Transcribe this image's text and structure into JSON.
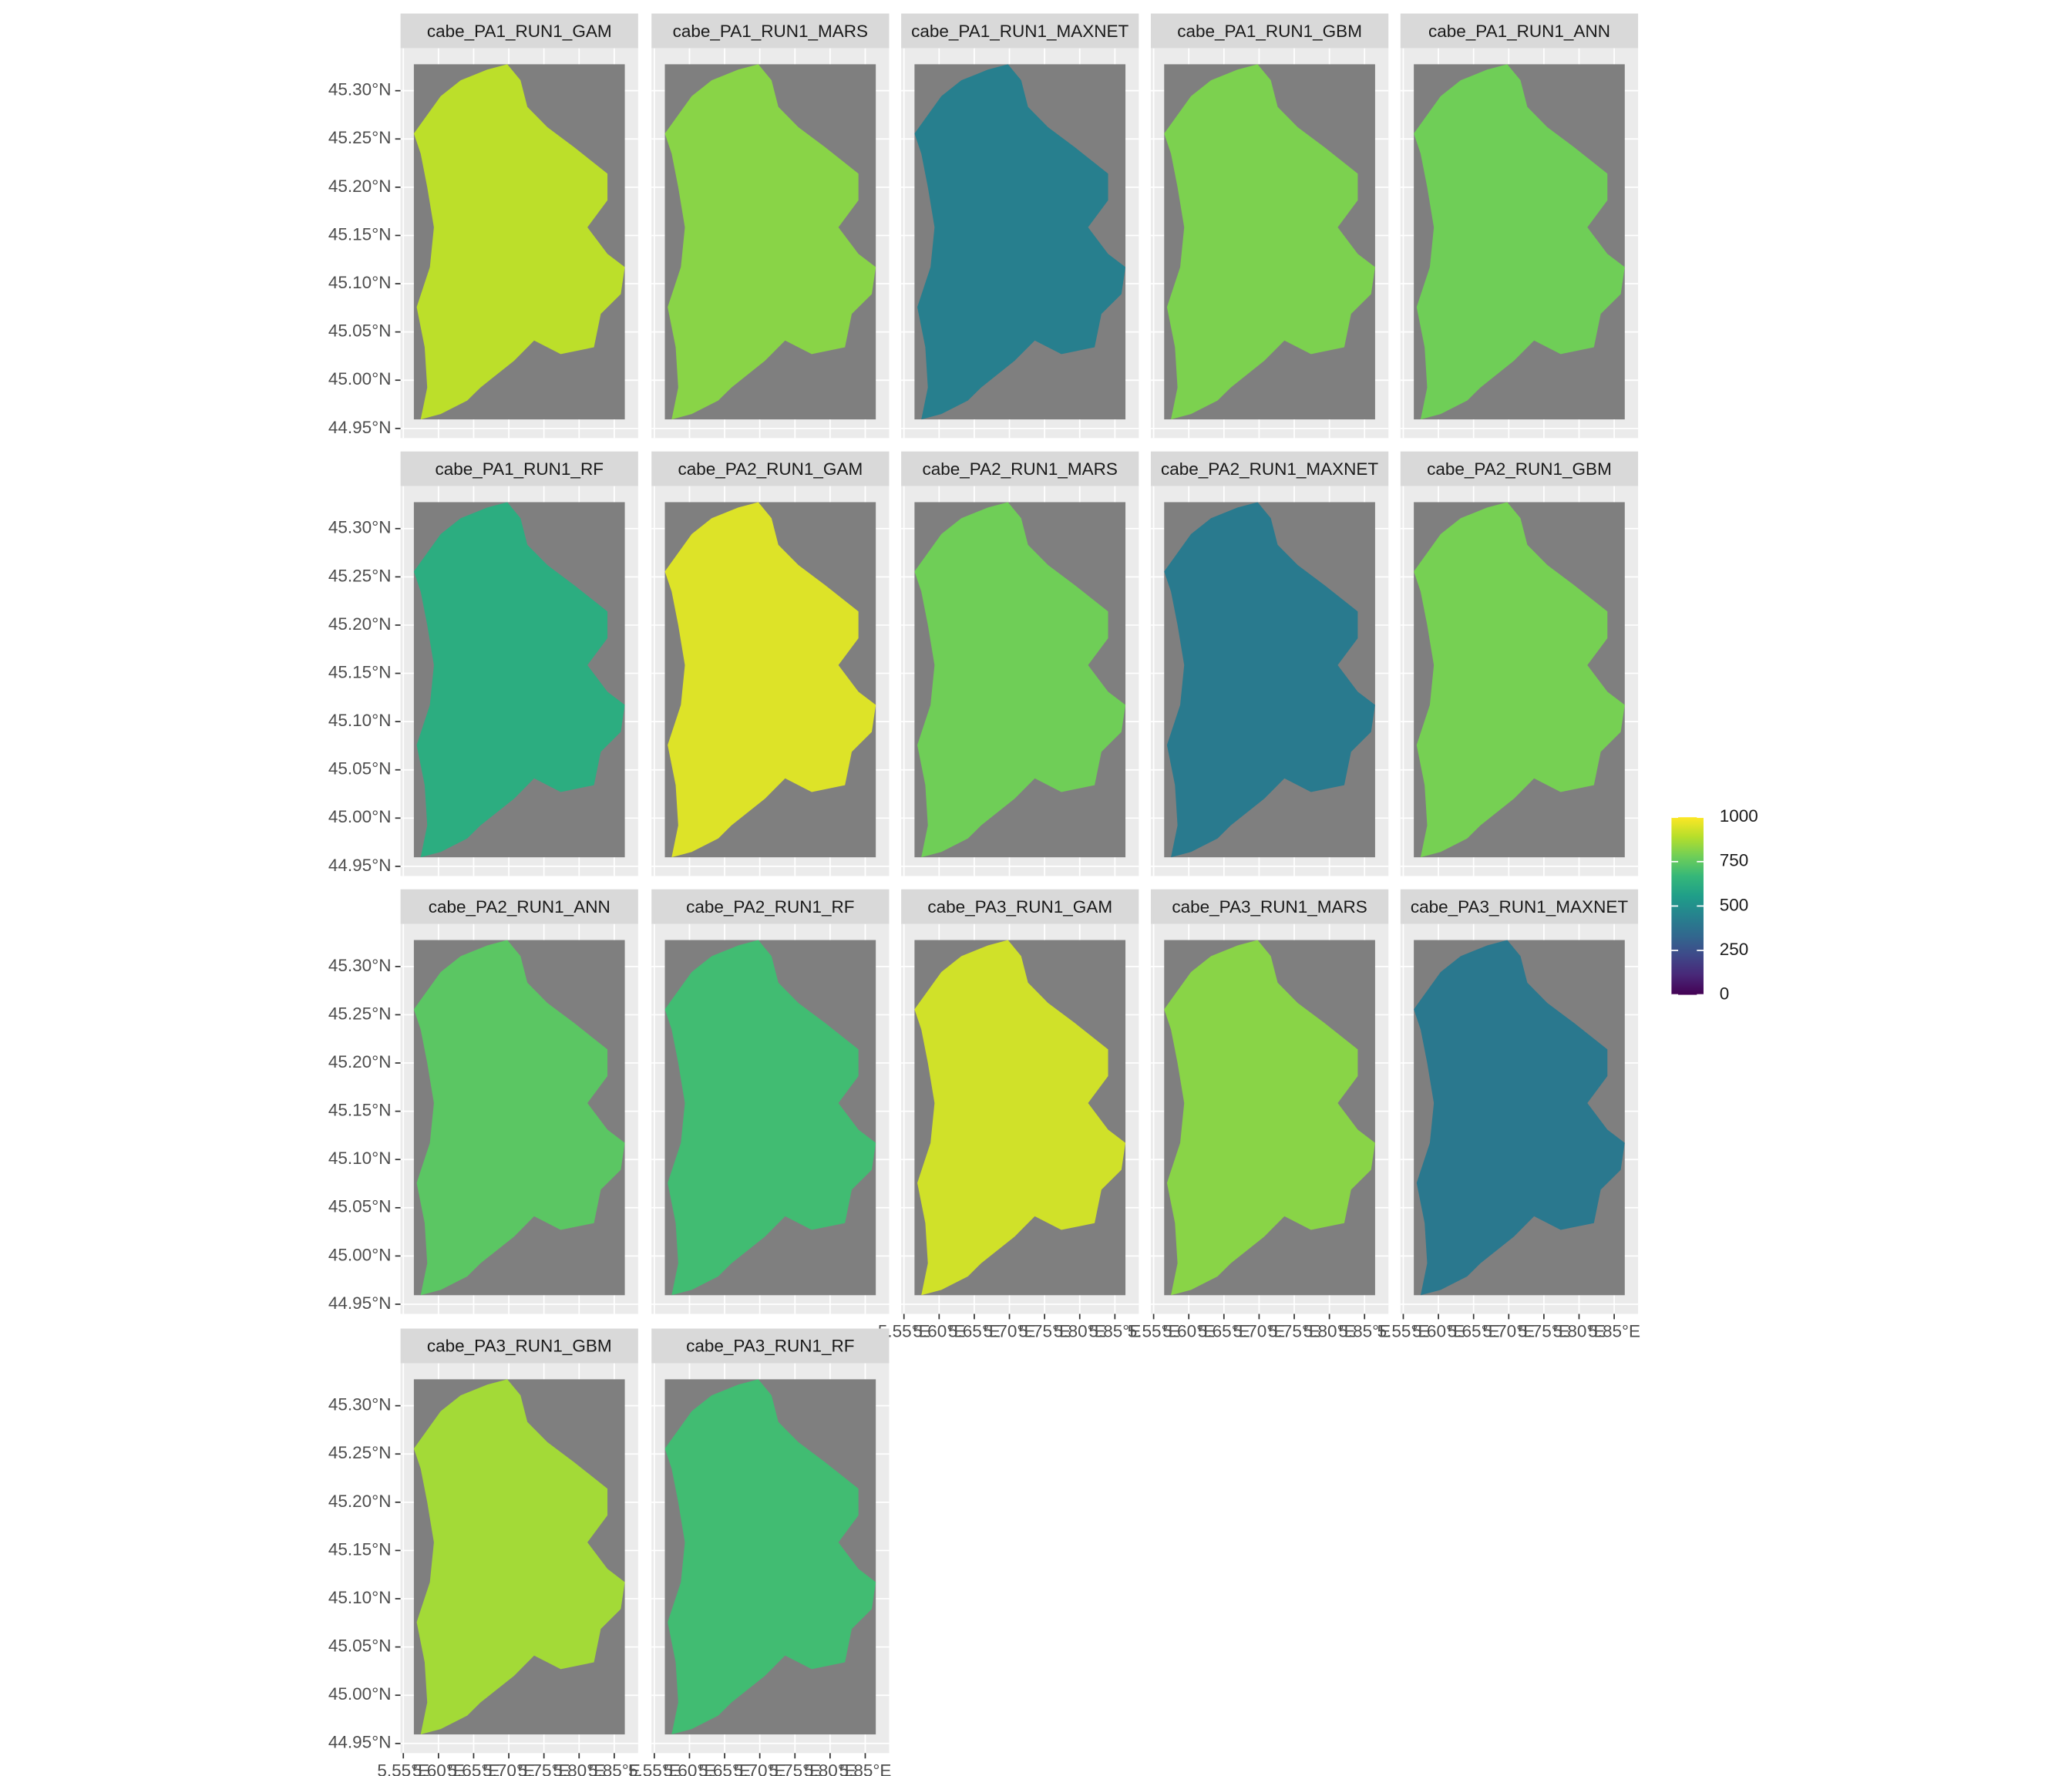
{
  "chart_data": {
    "type": "map",
    "facets": [
      "cabe_PA1_RUN1_GAM",
      "cabe_PA1_RUN1_MARS",
      "cabe_PA1_RUN1_MAXNET",
      "cabe_PA1_RUN1_GBM",
      "cabe_PA1_RUN1_ANN",
      "cabe_PA1_RUN1_RF",
      "cabe_PA2_RUN1_GAM",
      "cabe_PA2_RUN1_MARS",
      "cabe_PA2_RUN1_MAXNET",
      "cabe_PA2_RUN1_GBM",
      "cabe_PA2_RUN1_ANN",
      "cabe_PA2_RUN1_RF",
      "cabe_PA3_RUN1_GAM",
      "cabe_PA3_RUN1_MARS",
      "cabe_PA3_RUN1_MAXNET",
      "cabe_PA3_RUN1_GBM",
      "cabe_PA3_RUN1_RF"
    ],
    "values": [
      900,
      820,
      430,
      800,
      780,
      620,
      950,
      780,
      410,
      790,
      740,
      690,
      930,
      820,
      400,
      860,
      690
    ],
    "xlim": [
      5.546,
      5.884
    ],
    "ylim": [
      44.94,
      45.344
    ],
    "xticks": [
      {
        "value": 5.55,
        "label": "5.55°E"
      },
      {
        "value": 5.6,
        "label": "5.60°E"
      },
      {
        "value": 5.65,
        "label": "5.65°E"
      },
      {
        "value": 5.7,
        "label": "5.70°E"
      },
      {
        "value": 5.75,
        "label": "5.75°E"
      },
      {
        "value": 5.8,
        "label": "5.80°E"
      },
      {
        "value": 5.85,
        "label": "5.85°E"
      }
    ],
    "yticks": [
      {
        "value": 44.95,
        "label": "44.95°N"
      },
      {
        "value": 45.0,
        "label": "45.00°N"
      },
      {
        "value": 45.05,
        "label": "45.05°N"
      },
      {
        "value": 45.1,
        "label": "45.10°N"
      },
      {
        "value": 45.15,
        "label": "45.15°N"
      },
      {
        "value": 45.2,
        "label": "45.20°N"
      },
      {
        "value": 45.25,
        "label": "45.25°N"
      },
      {
        "value": 45.3,
        "label": "45.30°N"
      }
    ],
    "legend_lim": [
      0,
      1000
    ],
    "legend_ticks": [
      0,
      250,
      500,
      750,
      1000
    ],
    "colors": [
      "#440154",
      "#482878",
      "#3e4989",
      "#31688e",
      "#26828e",
      "#1f9e89",
      "#35b779",
      "#6ece58",
      "#b5de2b",
      "#fde725"
    ],
    "grid": true
  }
}
